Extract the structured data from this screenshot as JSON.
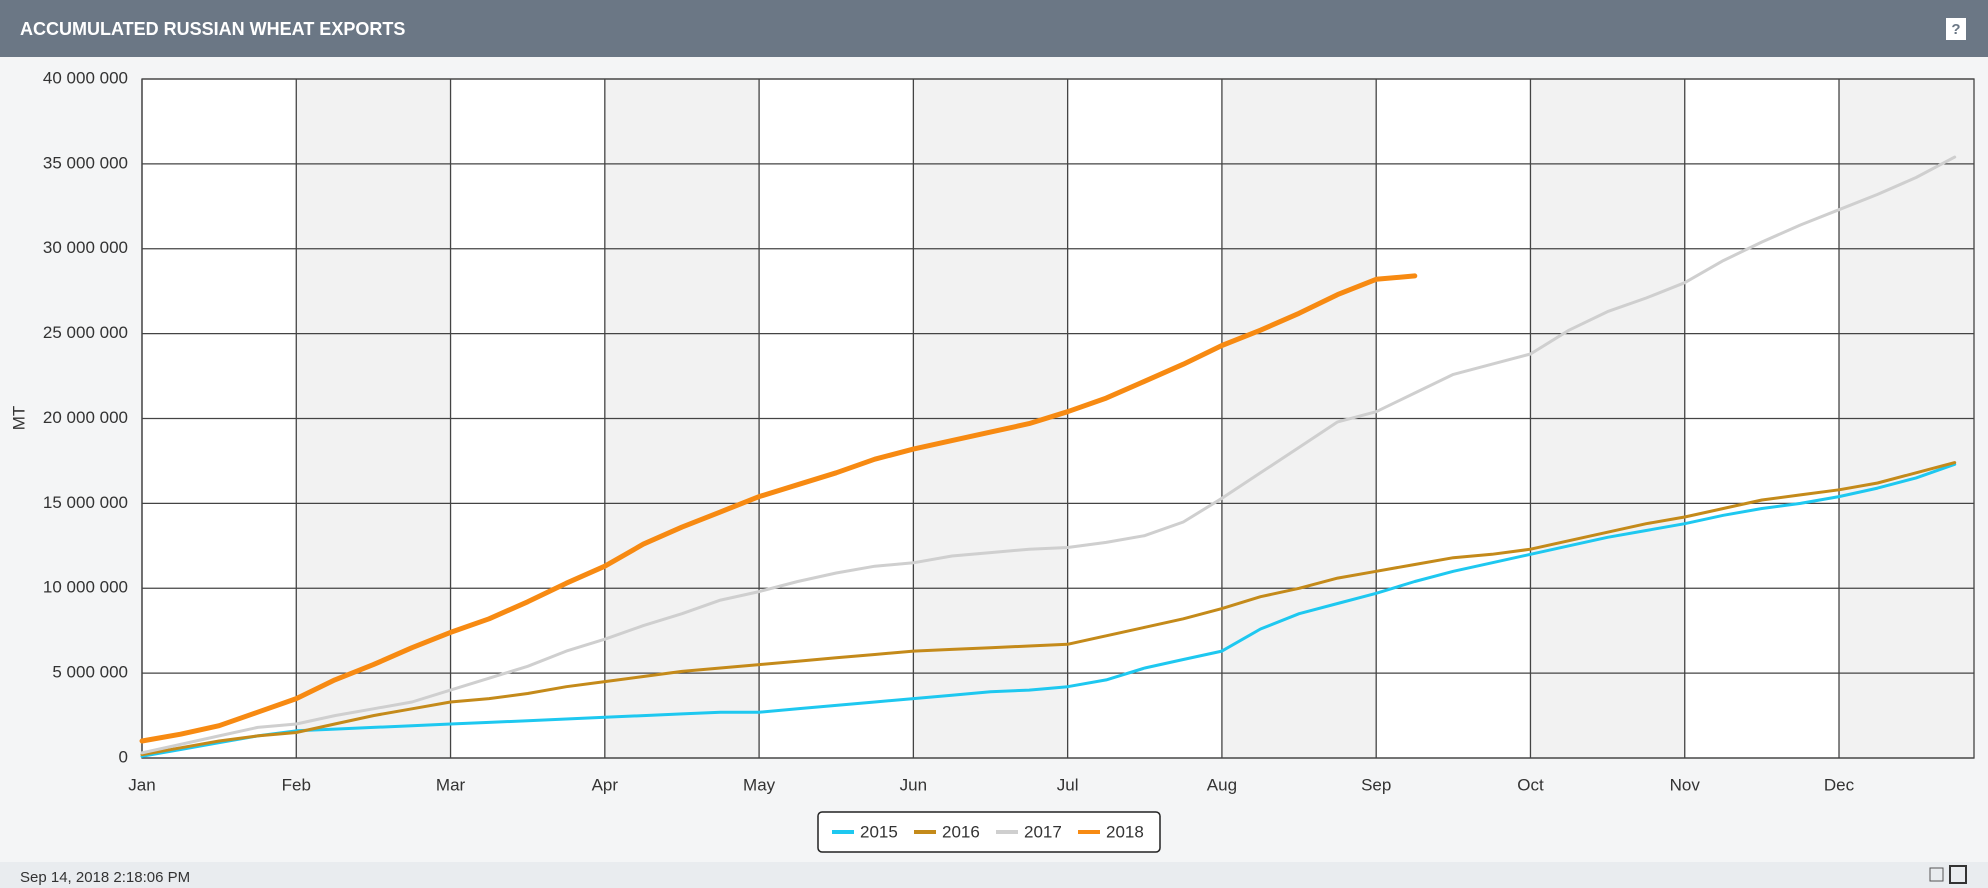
{
  "chart_data": {
    "type": "line",
    "title": "ACCUMULATED RUSSIAN WHEAT EXPORTS",
    "help": "?",
    "y_label": "MT",
    "timestamp": "Sep 14, 2018 2:18:06 PM",
    "categories": [
      "Jan",
      null,
      null,
      null,
      "Feb",
      null,
      null,
      null,
      "Mar",
      null,
      null,
      null,
      "Apr",
      null,
      null,
      null,
      "May",
      null,
      null,
      null,
      "Jun",
      null,
      null,
      null,
      "Jul",
      null,
      null,
      null,
      "Aug",
      null,
      null,
      null,
      "Sep",
      null,
      null,
      null,
      "Oct",
      null,
      null,
      null,
      "Nov",
      null,
      null,
      null,
      "Dec",
      null,
      null,
      null
    ],
    "series": [
      {
        "name": "2015",
        "color": "#1ec8f0",
        "values": [
          100000,
          500000,
          900000,
          1300000,
          1600000,
          1700000,
          1800000,
          1900000,
          2000000,
          2100000,
          2200000,
          2300000,
          2400000,
          2500000,
          2600000,
          2700000,
          2700000,
          2900000,
          3100000,
          3300000,
          3500000,
          3700000,
          3900000,
          4000000,
          4200000,
          4600000,
          5300000,
          5800000,
          6300000,
          7600000,
          8500000,
          9100000,
          9700000,
          10400000,
          11000000,
          11500000,
          12000000,
          12500000,
          13000000,
          13400000,
          13800000,
          14300000,
          14700000,
          15000000,
          15400000,
          15900000,
          16500000,
          17300000
        ]
      },
      {
        "name": "2016",
        "color": "#c48a1a",
        "values": [
          200000,
          600000,
          1000000,
          1300000,
          1500000,
          2000000,
          2500000,
          2900000,
          3300000,
          3500000,
          3800000,
          4200000,
          4500000,
          4800000,
          5100000,
          5300000,
          5500000,
          5700000,
          5900000,
          6100000,
          6300000,
          6400000,
          6500000,
          6600000,
          6700000,
          7200000,
          7700000,
          8200000,
          8800000,
          9500000,
          10000000,
          10600000,
          11000000,
          11400000,
          11800000,
          12000000,
          12300000,
          12800000,
          13300000,
          13800000,
          14200000,
          14700000,
          15200000,
          15500000,
          15800000,
          16200000,
          16800000,
          17400000
        ]
      },
      {
        "name": "2017",
        "color": "#cfcfcf",
        "values": [
          300000,
          800000,
          1300000,
          1800000,
          2000000,
          2500000,
          2900000,
          3300000,
          4000000,
          4700000,
          5400000,
          6300000,
          7000000,
          7800000,
          8500000,
          9300000,
          9800000,
          10400000,
          10900000,
          11300000,
          11500000,
          11900000,
          12100000,
          12300000,
          12400000,
          12700000,
          13100000,
          13900000,
          15300000,
          16800000,
          18300000,
          19800000,
          20400000,
          21500000,
          22600000,
          23200000,
          23800000,
          25200000,
          26300000,
          27100000,
          28000000,
          29300000,
          30400000,
          31400000,
          32300000,
          33200000,
          34200000,
          35400000
        ]
      },
      {
        "name": "2018",
        "color": "#f78a12",
        "values": [
          1000000,
          1400000,
          1900000,
          2700000,
          3500000,
          4600000,
          5500000,
          6500000,
          7400000,
          8200000,
          9200000,
          10300000,
          11300000,
          12600000,
          13600000,
          14500000,
          15400000,
          16100000,
          16800000,
          17600000,
          18200000,
          18700000,
          19200000,
          19700000,
          20400000,
          21200000,
          22200000,
          23200000,
          24300000,
          25200000,
          26200000,
          27300000,
          28200000,
          28400000,
          null,
          null,
          null,
          null,
          null,
          null,
          null,
          null,
          null,
          null,
          null,
          null,
          null,
          null
        ]
      }
    ],
    "ylim": [
      0,
      40000000
    ],
    "yticks": [
      0,
      {
        "value": 5000000,
        "label": "5 000 000"
      },
      {
        "value": 10000000,
        "label": "10 000 000"
      },
      {
        "value": 15000000,
        "label": "15 000 000"
      },
      {
        "value": 20000000,
        "label": "20 000 000"
      },
      {
        "value": 25000000,
        "label": "25 000 000"
      },
      {
        "value": 30000000,
        "label": "30 000 000"
      },
      {
        "value": 35000000,
        "label": "35 000 000"
      },
      {
        "value": 40000000,
        "label": "40 000 000"
      }
    ],
    "grid": true,
    "legend": "bottom"
  }
}
